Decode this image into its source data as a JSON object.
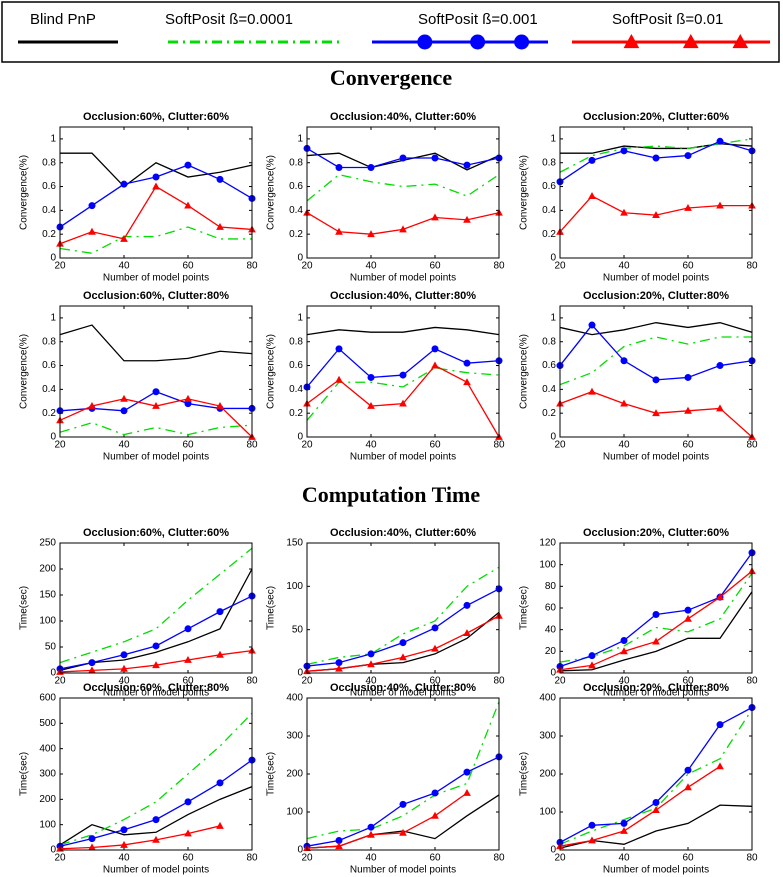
{
  "legend": [
    {
      "name": "Blind PnP",
      "color": "#000000",
      "dash": "none",
      "marker": "none"
    },
    {
      "name": "SoftPosit  ß=0.0001",
      "color": "#00dd00",
      "dash": "10,5,2,5",
      "marker": "none"
    },
    {
      "name": "SoftPosit  ß=0.001",
      "color": "#0000ff",
      "dash": "none",
      "marker": "circle"
    },
    {
      "name": "SoftPosit  ß=0.01",
      "color": "#ff0000",
      "dash": "none",
      "marker": "triangle"
    }
  ],
  "sections": [
    "Convergence",
    "Computation Time"
  ],
  "chart_data": [
    {
      "type": "line",
      "title": "Occlusion:60%, Clutter:60%",
      "x_label": "Number of model points",
      "y_label": "Convergence(%)",
      "x": [
        20,
        30,
        40,
        50,
        60,
        70,
        80
      ],
      "xlim": [
        20,
        80
      ],
      "xticks": [
        20,
        40,
        60,
        80
      ],
      "ylim": [
        0,
        1.1
      ],
      "yticks": [
        0,
        0.2,
        0.4,
        0.6,
        0.8,
        1
      ],
      "series": [
        {
          "values": [
            0.88,
            0.88,
            0.6,
            0.8,
            0.68,
            0.72,
            0.78
          ]
        },
        {
          "values": [
            0.08,
            0.04,
            0.18,
            0.18,
            0.26,
            0.16,
            0.16
          ]
        },
        {
          "values": [
            0.26,
            0.44,
            0.62,
            0.68,
            0.78,
            0.66,
            0.5
          ]
        },
        {
          "values": [
            0.12,
            0.22,
            0.16,
            0.6,
            0.44,
            0.26,
            0.24
          ]
        }
      ]
    },
    {
      "type": "line",
      "title": "Occlusion:40%, Clutter:60%",
      "x_label": "Number of model points",
      "y_label": "Convergence(%)",
      "x": [
        20,
        30,
        40,
        50,
        60,
        70,
        80
      ],
      "xlim": [
        20,
        80
      ],
      "xticks": [
        20,
        40,
        60,
        80
      ],
      "ylim": [
        0,
        1.1
      ],
      "yticks": [
        0,
        0.2,
        0.4,
        0.6,
        0.8,
        1
      ],
      "series": [
        {
          "values": [
            0.86,
            0.88,
            0.76,
            0.82,
            0.88,
            0.74,
            0.86
          ]
        },
        {
          "values": [
            0.48,
            0.7,
            0.64,
            0.6,
            0.62,
            0.52,
            0.7
          ]
        },
        {
          "values": [
            0.92,
            0.76,
            0.76,
            0.84,
            0.84,
            0.78,
            0.84
          ]
        },
        {
          "values": [
            0.38,
            0.22,
            0.2,
            0.24,
            0.34,
            0.32,
            0.38
          ]
        }
      ]
    },
    {
      "type": "line",
      "title": "Occlusion:20%, Clutter:60%",
      "x_label": "Number of model points",
      "y_label": "Convergence(%)",
      "x": [
        20,
        30,
        40,
        50,
        60,
        70,
        80
      ],
      "xlim": [
        20,
        80
      ],
      "xticks": [
        20,
        40,
        60,
        80
      ],
      "ylim": [
        0,
        1.1
      ],
      "yticks": [
        0,
        0.2,
        0.4,
        0.6,
        0.8,
        1
      ],
      "series": [
        {
          "values": [
            0.88,
            0.88,
            0.94,
            0.92,
            0.92,
            0.96,
            0.94
          ]
        },
        {
          "values": [
            0.72,
            0.86,
            0.92,
            0.94,
            0.92,
            0.96,
            1.0
          ]
        },
        {
          "values": [
            0.64,
            0.82,
            0.9,
            0.84,
            0.86,
            0.98,
            0.9
          ]
        },
        {
          "values": [
            0.22,
            0.52,
            0.38,
            0.36,
            0.42,
            0.44,
            0.44
          ]
        }
      ]
    },
    {
      "type": "line",
      "title": "Occlusion:60%, Clutter:80%",
      "x_label": "Number of model points",
      "y_label": "Convergence(%)",
      "x": [
        20,
        30,
        40,
        50,
        60,
        70,
        80
      ],
      "xlim": [
        20,
        80
      ],
      "xticks": [
        20,
        40,
        60,
        80
      ],
      "ylim": [
        0,
        1.1
      ],
      "yticks": [
        0,
        0.2,
        0.4,
        0.6,
        0.8,
        1
      ],
      "series": [
        {
          "values": [
            0.86,
            0.94,
            0.64,
            0.64,
            0.66,
            0.72,
            0.7
          ]
        },
        {
          "values": [
            0.04,
            0.12,
            0.02,
            0.08,
            0.02,
            0.08,
            0.1
          ]
        },
        {
          "values": [
            0.22,
            0.24,
            0.22,
            0.38,
            0.28,
            0.24,
            0.24
          ]
        },
        {
          "values": [
            0.14,
            0.26,
            0.32,
            0.26,
            0.32,
            0.26,
            0
          ]
        }
      ]
    },
    {
      "type": "line",
      "title": "Occlusion:40%, Clutter:80%",
      "x_label": "Number of model points",
      "y_label": "Convergence(%)",
      "x": [
        20,
        30,
        40,
        50,
        60,
        70,
        80
      ],
      "xlim": [
        20,
        80
      ],
      "xticks": [
        20,
        40,
        60,
        80
      ],
      "ylim": [
        0,
        1.1
      ],
      "yticks": [
        0,
        0.2,
        0.4,
        0.6,
        0.8,
        1
      ],
      "series": [
        {
          "values": [
            0.86,
            0.9,
            0.88,
            0.88,
            0.92,
            0.9,
            0.86
          ]
        },
        {
          "values": [
            0.14,
            0.46,
            0.46,
            0.42,
            0.58,
            0.54,
            0.52
          ]
        },
        {
          "values": [
            0.42,
            0.74,
            0.5,
            0.52,
            0.74,
            0.62,
            0.64
          ]
        },
        {
          "values": [
            0.28,
            0.48,
            0.26,
            0.28,
            0.6,
            0.46,
            0
          ]
        }
      ]
    },
    {
      "type": "line",
      "title": "Occlusion:20%, Clutter:80%",
      "x_label": "Number of model points",
      "y_label": "Convergence(%)",
      "x": [
        20,
        30,
        40,
        50,
        60,
        70,
        80
      ],
      "xlim": [
        20,
        80
      ],
      "xticks": [
        20,
        40,
        60,
        80
      ],
      "ylim": [
        0,
        1.1
      ],
      "yticks": [
        0,
        0.2,
        0.4,
        0.6,
        0.8,
        1
      ],
      "series": [
        {
          "values": [
            0.92,
            0.86,
            0.9,
            0.96,
            0.92,
            0.96,
            0.88
          ]
        },
        {
          "values": [
            0.44,
            0.54,
            0.76,
            0.84,
            0.78,
            0.84,
            0.84
          ]
        },
        {
          "values": [
            0.6,
            0.94,
            0.64,
            0.48,
            0.5,
            0.6,
            0.64
          ]
        },
        {
          "values": [
            0.28,
            0.38,
            0.28,
            0.2,
            0.22,
            0.24,
            0
          ]
        }
      ]
    },
    {
      "type": "line",
      "title": "Occlusion:60%, Clutter:60%",
      "x_label": "Number of model points",
      "y_label": "Time(sec)",
      "x": [
        20,
        30,
        40,
        50,
        60,
        70,
        80
      ],
      "xlim": [
        20,
        80
      ],
      "xticks": [
        20,
        40,
        60,
        80
      ],
      "ylim": [
        0,
        250
      ],
      "yticks": [
        0,
        50,
        100,
        150,
        200,
        250
      ],
      "series": [
        {
          "values": [
            5,
            20,
            25,
            40,
            60,
            85,
            200
          ]
        },
        {
          "values": [
            20,
            40,
            60,
            85,
            140,
            190,
            240
          ]
        },
        {
          "values": [
            8,
            20,
            35,
            52,
            85,
            118,
            148
          ]
        },
        {
          "values": [
            2,
            5,
            8,
            15,
            25,
            35,
            43
          ]
        }
      ]
    },
    {
      "type": "line",
      "title": "Occlusion:40%, Clutter:60%",
      "x_label": "Number of model points",
      "y_label": "Time(sec)",
      "x": [
        20,
        30,
        40,
        50,
        60,
        70,
        80
      ],
      "xlim": [
        20,
        80
      ],
      "xticks": [
        20,
        40,
        60,
        80
      ],
      "ylim": [
        0,
        150
      ],
      "yticks": [
        0,
        50,
        100,
        150
      ],
      "series": [
        {
          "values": [
            2,
            5,
            10,
            12,
            22,
            40,
            70
          ]
        },
        {
          "values": [
            10,
            18,
            22,
            45,
            60,
            100,
            122
          ]
        },
        {
          "values": [
            8,
            12,
            22,
            35,
            52,
            78,
            97
          ]
        },
        {
          "values": [
            2,
            5,
            10,
            18,
            28,
            46,
            66
          ]
        }
      ]
    },
    {
      "type": "line",
      "title": "Occlusion:20%, Clutter:60%",
      "x_label": "Number of model points",
      "y_label": "Time(sec)",
      "x": [
        20,
        30,
        40,
        50,
        60,
        70,
        80
      ],
      "xlim": [
        20,
        80
      ],
      "xticks": [
        20,
        40,
        60,
        80
      ],
      "ylim": [
        0,
        120
      ],
      "yticks": [
        0,
        20,
        40,
        60,
        80,
        100,
        120
      ],
      "series": [
        {
          "values": [
            2,
            3,
            12,
            20,
            32,
            32,
            75
          ]
        },
        {
          "values": [
            10,
            15,
            25,
            42,
            38,
            50,
            92
          ]
        },
        {
          "values": [
            6,
            16,
            30,
            54,
            58,
            70,
            111
          ]
        },
        {
          "values": [
            3,
            7,
            20,
            29,
            50,
            70,
            94
          ]
        }
      ]
    },
    {
      "type": "line",
      "title": "Occlusion:60%, Clutter:80%",
      "x_label": "Number of model points",
      "y_label": "Time(sec)",
      "x": [
        20,
        30,
        40,
        50,
        60,
        70,
        80
      ],
      "xlim": [
        20,
        80
      ],
      "xticks": [
        20,
        40,
        60,
        80
      ],
      "ylim": [
        0,
        600
      ],
      "yticks": [
        0,
        100,
        200,
        300,
        400,
        500,
        600
      ],
      "series": [
        {
          "values": [
            20,
            100,
            60,
            70,
            140,
            200,
            250
          ]
        },
        {
          "values": [
            20,
            60,
            120,
            190,
            300,
            410,
            540
          ]
        },
        {
          "values": [
            15,
            45,
            80,
            120,
            190,
            265,
            355
          ]
        },
        {
          "values": [
            5,
            10,
            20,
            40,
            65,
            95,
            null
          ]
        }
      ]
    },
    {
      "type": "line",
      "title": "Occlusion:40%, Clutter:80%",
      "x_label": "Number of model points",
      "y_label": "Time(sec)",
      "x": [
        20,
        30,
        40,
        50,
        60,
        70,
        80
      ],
      "xlim": [
        20,
        80
      ],
      "xticks": [
        20,
        40,
        60,
        80
      ],
      "ylim": [
        0,
        400
      ],
      "yticks": [
        0,
        100,
        200,
        300,
        400
      ],
      "series": [
        {
          "values": [
            5,
            10,
            40,
            50,
            30,
            90,
            145
          ]
        },
        {
          "values": [
            30,
            50,
            55,
            90,
            145,
            175,
            390
          ]
        },
        {
          "values": [
            10,
            25,
            60,
            120,
            150,
            205,
            245
          ]
        },
        {
          "values": [
            5,
            10,
            40,
            45,
            90,
            150,
            null
          ]
        }
      ]
    },
    {
      "type": "line",
      "title": "Occlusion:20%, Clutter:80%",
      "x_label": "Number of model points",
      "y_label": "Time(sec)",
      "x": [
        20,
        30,
        40,
        50,
        60,
        70,
        80
      ],
      "xlim": [
        20,
        80
      ],
      "xticks": [
        20,
        40,
        60,
        80
      ],
      "ylim": [
        0,
        400
      ],
      "yticks": [
        0,
        100,
        200,
        300,
        400
      ],
      "series": [
        {
          "values": [
            5,
            25,
            15,
            50,
            70,
            118,
            115
          ]
        },
        {
          "values": [
            15,
            50,
            80,
            110,
            200,
            240,
            370
          ]
        },
        {
          "values": [
            20,
            65,
            70,
            125,
            210,
            330,
            375
          ]
        },
        {
          "values": [
            10,
            25,
            50,
            105,
            165,
            220,
            null
          ]
        }
      ]
    }
  ]
}
